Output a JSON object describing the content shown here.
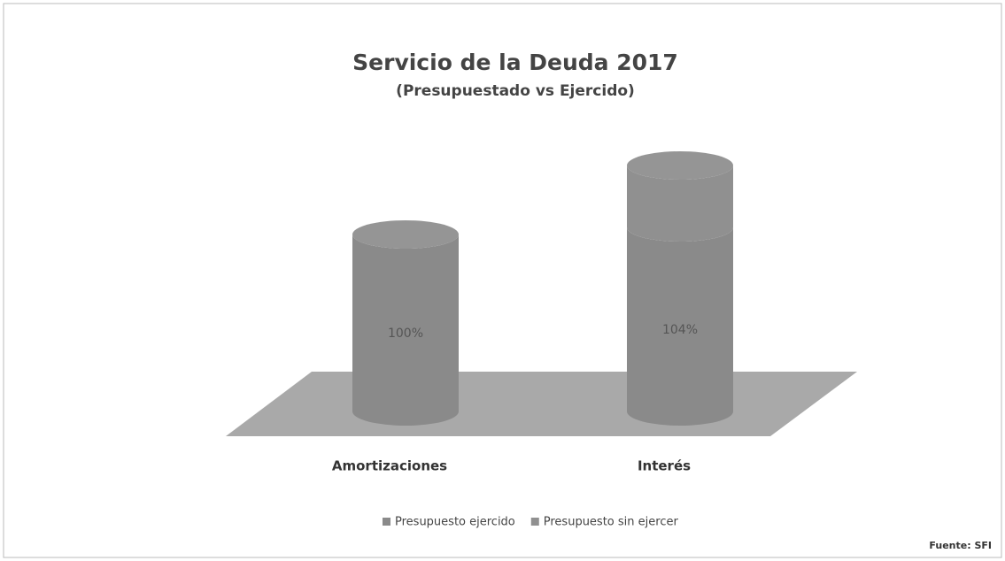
{
  "chart_data": {
    "type": "cylinder3d",
    "title": "Servicio de la Deuda 2017",
    "subtitle": "(Presupuestado vs Ejercido)",
    "categories": [
      "Amortizaciones",
      "Interés"
    ],
    "series": [
      {
        "name": "Presupuesto ejercido",
        "color": "#8a8a8a",
        "values": [
          100,
          104
        ],
        "value_labels": [
          "100%",
          "104%"
        ]
      },
      {
        "name": "Presupuesto sin ejercer",
        "color": "#909090",
        "values": [
          0,
          35
        ]
      }
    ],
    "source": "Fuente: SFI"
  }
}
